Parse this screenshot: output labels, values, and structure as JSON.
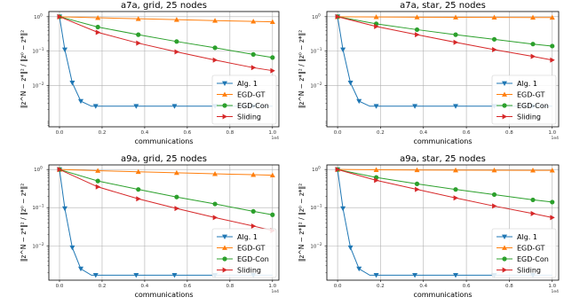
{
  "figure": {
    "colors": {
      "alg1": "#1f77b4",
      "egdgt": "#ff7f0e",
      "egdcon": "#2ca02c",
      "sliding": "#d62728",
      "grid": "#b0b0b0"
    },
    "xlabel": "communications",
    "ylabel": "‖z^N − z*‖² / ‖z⁰ − z*‖²",
    "x_sci": "1e4",
    "legend": [
      "Alg. 1",
      "EGD-GT",
      "EGD-Con",
      "Sliding"
    ]
  },
  "chart_data": [
    {
      "type": "line",
      "title": "a7a, grid, 25 nodes",
      "xlabel": "communications",
      "ylabel": "‖z^N − z*‖² / ‖z⁰ − z*‖²",
      "x_ticks": [
        0.0,
        0.2,
        0.4,
        0.6,
        0.8,
        1.0
      ],
      "x_tick_labels": [
        "0.0",
        "0.2",
        "0.4",
        "0.6",
        "0.8",
        "1.0"
      ],
      "y_ticks": [
        "10^0",
        "10^-1",
        "10^-2"
      ],
      "xlim": [
        -0.05,
        1.03
      ],
      "ylim_log10": [
        -3.2,
        0.15
      ],
      "yscale": "log",
      "grid": true,
      "legend_position": "lower-right",
      "series": [
        {
          "name": "Alg. 1",
          "marker": "triangle-down",
          "points": [
            [
              0.0,
              1.0
            ],
            [
              0.025,
              0.11
            ],
            [
              0.06,
              0.012
            ],
            [
              0.1,
              0.0035
            ],
            [
              0.15,
              0.0025
            ],
            [
              0.17,
              0.0025
            ],
            [
              0.36,
              0.0025
            ],
            [
              0.54,
              0.0025
            ],
            [
              0.73,
              0.0025
            ],
            [
              0.91,
              0.0025
            ],
            [
              1.0,
              0.0025
            ]
          ]
        },
        {
          "name": "EGD-GT",
          "marker": "triangle-up",
          "points": [
            [
              0.0,
              1.0
            ],
            [
              0.18,
              0.93
            ],
            [
              0.37,
              0.87
            ],
            [
              0.55,
              0.82
            ],
            [
              0.73,
              0.77
            ],
            [
              0.91,
              0.73
            ],
            [
              1.0,
              0.71
            ]
          ]
        },
        {
          "name": "EGD-Con",
          "marker": "circle",
          "points": [
            [
              0.0,
              1.0
            ],
            [
              0.18,
              0.5
            ],
            [
              0.37,
              0.3
            ],
            [
              0.55,
              0.19
            ],
            [
              0.73,
              0.125
            ],
            [
              0.91,
              0.08
            ],
            [
              1.0,
              0.065
            ]
          ]
        },
        {
          "name": "Sliding",
          "marker": "triangle-right",
          "points": [
            [
              0.0,
              1.0
            ],
            [
              0.18,
              0.35
            ],
            [
              0.37,
              0.17
            ],
            [
              0.55,
              0.095
            ],
            [
              0.73,
              0.055
            ],
            [
              0.91,
              0.033
            ],
            [
              1.0,
              0.027
            ]
          ]
        }
      ]
    },
    {
      "type": "line",
      "title": "a7a, star, 25 nodes",
      "xlabel": "communications",
      "ylabel": "‖z^N − z*‖² / ‖z⁰ − z*‖²",
      "x_ticks": [
        0.0,
        0.2,
        0.4,
        0.6,
        0.8,
        1.0
      ],
      "x_tick_labels": [
        "0.0",
        "0.2",
        "0.4",
        "0.6",
        "0.8",
        "1.0"
      ],
      "y_ticks": [
        "10^0",
        "10^-1",
        "10^-2"
      ],
      "xlim": [
        -0.05,
        1.03
      ],
      "ylim_log10": [
        -3.2,
        0.15
      ],
      "yscale": "log",
      "grid": true,
      "legend_position": "lower-right",
      "series": [
        {
          "name": "Alg. 1",
          "marker": "triangle-down",
          "points": [
            [
              0.0,
              1.0
            ],
            [
              0.025,
              0.11
            ],
            [
              0.06,
              0.012
            ],
            [
              0.1,
              0.0035
            ],
            [
              0.15,
              0.0025
            ],
            [
              0.18,
              0.0025
            ],
            [
              0.36,
              0.0025
            ],
            [
              0.55,
              0.0025
            ],
            [
              0.73,
              0.0025
            ],
            [
              0.91,
              0.0025
            ],
            [
              1.0,
              0.0025
            ]
          ]
        },
        {
          "name": "EGD-GT",
          "marker": "triangle-up",
          "points": [
            [
              0.0,
              1.0
            ],
            [
              0.18,
              0.98
            ],
            [
              0.37,
              0.97
            ],
            [
              0.55,
              0.96
            ],
            [
              0.73,
              0.955
            ],
            [
              0.91,
              0.95
            ],
            [
              1.0,
              0.95
            ]
          ]
        },
        {
          "name": "EGD-Con",
          "marker": "circle",
          "points": [
            [
              0.0,
              1.0
            ],
            [
              0.18,
              0.62
            ],
            [
              0.37,
              0.42
            ],
            [
              0.55,
              0.3
            ],
            [
              0.73,
              0.22
            ],
            [
              0.91,
              0.16
            ],
            [
              1.0,
              0.14
            ]
          ]
        },
        {
          "name": "Sliding",
          "marker": "triangle-right",
          "points": [
            [
              0.0,
              1.0
            ],
            [
              0.18,
              0.52
            ],
            [
              0.37,
              0.3
            ],
            [
              0.55,
              0.18
            ],
            [
              0.73,
              0.11
            ],
            [
              0.91,
              0.07
            ],
            [
              1.0,
              0.055
            ]
          ]
        }
      ]
    },
    {
      "type": "line",
      "title": "a9a, grid, 25 nodes",
      "xlabel": "communications",
      "ylabel": "‖z^N − z*‖² / ‖z⁰ − z*‖²",
      "x_ticks": [
        0.0,
        0.2,
        0.4,
        0.6,
        0.8,
        1.0
      ],
      "x_tick_labels": [
        "0.0",
        "0.2",
        "0.4",
        "0.6",
        "0.8",
        "1.0"
      ],
      "y_ticks": [
        "10^0",
        "10^-1",
        "10^-2"
      ],
      "xlim": [
        -0.05,
        1.03
      ],
      "ylim_log10": [
        -2.9,
        0.12
      ],
      "yscale": "log",
      "grid": true,
      "legend_position": "lower-right",
      "series": [
        {
          "name": "Alg. 1",
          "marker": "triangle-down",
          "points": [
            [
              0.0,
              1.0
            ],
            [
              0.025,
              0.095
            ],
            [
              0.06,
              0.009
            ],
            [
              0.1,
              0.0025
            ],
            [
              0.15,
              0.0017
            ],
            [
              0.17,
              0.0017
            ],
            [
              0.36,
              0.0017
            ],
            [
              0.54,
              0.0017
            ],
            [
              0.73,
              0.0017
            ],
            [
              0.91,
              0.0017
            ],
            [
              1.0,
              0.0017
            ]
          ]
        },
        {
          "name": "EGD-GT",
          "marker": "triangle-up",
          "points": [
            [
              0.0,
              1.0
            ],
            [
              0.18,
              0.93
            ],
            [
              0.37,
              0.87
            ],
            [
              0.55,
              0.82
            ],
            [
              0.73,
              0.77
            ],
            [
              0.91,
              0.73
            ],
            [
              1.0,
              0.71
            ]
          ]
        },
        {
          "name": "EGD-Con",
          "marker": "circle",
          "points": [
            [
              0.0,
              1.0
            ],
            [
              0.18,
              0.5
            ],
            [
              0.37,
              0.3
            ],
            [
              0.55,
              0.19
            ],
            [
              0.73,
              0.125
            ],
            [
              0.91,
              0.08
            ],
            [
              1.0,
              0.065
            ]
          ]
        },
        {
          "name": "Sliding",
          "marker": "triangle-right",
          "points": [
            [
              0.0,
              1.0
            ],
            [
              0.18,
              0.35
            ],
            [
              0.37,
              0.17
            ],
            [
              0.55,
              0.095
            ],
            [
              0.73,
              0.055
            ],
            [
              0.91,
              0.033
            ],
            [
              1.0,
              0.025
            ]
          ]
        }
      ]
    },
    {
      "type": "line",
      "title": "a9a, star, 25 nodes",
      "xlabel": "communications",
      "ylabel": "‖z^N − z*‖² / ‖z⁰ − z*‖²",
      "x_ticks": [
        0.0,
        0.2,
        0.4,
        0.6,
        0.8,
        1.0
      ],
      "x_tick_labels": [
        "0.0",
        "0.2",
        "0.4",
        "0.6",
        "0.8",
        "1.0"
      ],
      "y_ticks": [
        "10^0",
        "10^-1",
        "10^-2"
      ],
      "xlim": [
        -0.05,
        1.03
      ],
      "ylim_log10": [
        -2.9,
        0.12
      ],
      "yscale": "log",
      "grid": true,
      "legend_position": "lower-right",
      "series": [
        {
          "name": "Alg. 1",
          "marker": "triangle-down",
          "points": [
            [
              0.0,
              1.0
            ],
            [
              0.025,
              0.095
            ],
            [
              0.06,
              0.009
            ],
            [
              0.1,
              0.0025
            ],
            [
              0.15,
              0.0017
            ],
            [
              0.18,
              0.0017
            ],
            [
              0.36,
              0.0017
            ],
            [
              0.55,
              0.0017
            ],
            [
              0.73,
              0.0017
            ],
            [
              0.91,
              0.0017
            ],
            [
              1.0,
              0.0017
            ]
          ]
        },
        {
          "name": "EGD-GT",
          "marker": "triangle-up",
          "points": [
            [
              0.0,
              1.0
            ],
            [
              0.18,
              0.98
            ],
            [
              0.37,
              0.97
            ],
            [
              0.55,
              0.96
            ],
            [
              0.73,
              0.955
            ],
            [
              0.91,
              0.95
            ],
            [
              1.0,
              0.95
            ]
          ]
        },
        {
          "name": "EGD-Con",
          "marker": "circle",
          "points": [
            [
              0.0,
              1.0
            ],
            [
              0.18,
              0.62
            ],
            [
              0.37,
              0.42
            ],
            [
              0.55,
              0.3
            ],
            [
              0.73,
              0.22
            ],
            [
              0.91,
              0.16
            ],
            [
              1.0,
              0.14
            ]
          ]
        },
        {
          "name": "Sliding",
          "marker": "triangle-right",
          "points": [
            [
              0.0,
              1.0
            ],
            [
              0.18,
              0.52
            ],
            [
              0.37,
              0.3
            ],
            [
              0.55,
              0.18
            ],
            [
              0.73,
              0.11
            ],
            [
              0.91,
              0.07
            ],
            [
              1.0,
              0.055
            ]
          ]
        }
      ]
    }
  ]
}
